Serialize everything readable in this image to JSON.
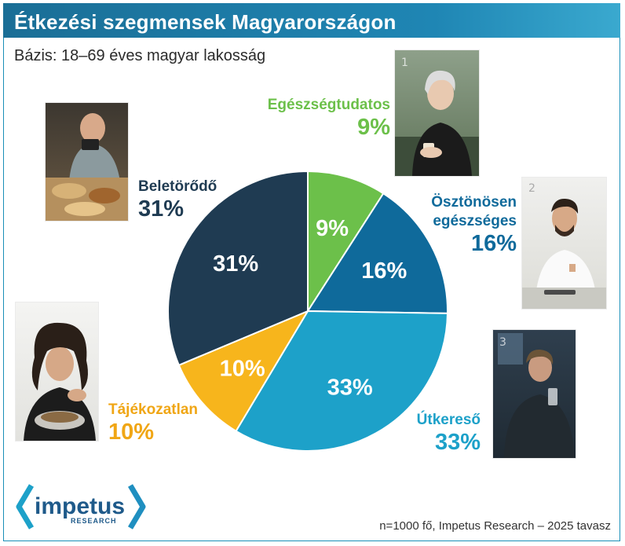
{
  "header": {
    "title": "Étkezési szegmensek Magyarországon",
    "subtitle": "Bázis: 18–69 éves magyar lakosság"
  },
  "footer": {
    "note": "n=1000 fő, Impetus Research – 2025 tavasz",
    "logo_name": "impetus",
    "logo_sub": "RESEARCH"
  },
  "chart_data": {
    "type": "pie",
    "title": "Étkezési szegmensek Magyarországon",
    "slices": [
      {
        "name": "Egészségtudatos",
        "value": 9,
        "label": "9%",
        "color": "#6cc04a"
      },
      {
        "name": "Ösztönösen egészséges",
        "value": 16,
        "label": "16%",
        "color": "#0f6a9b"
      },
      {
        "name": "Útkereső",
        "value": 33,
        "label": "33%",
        "color": "#1da1c9"
      },
      {
        "name": "Tájékozatlan",
        "value": 10,
        "label": "10%",
        "color": "#f7b51c"
      },
      {
        "name": "Beletörődő",
        "value": 31,
        "label": "31%",
        "color": "#1f3b52"
      }
    ]
  },
  "labels": {
    "egeszseg": {
      "name": "Egészségtudatos",
      "pct": "9%"
    },
    "osztonos": {
      "name1": "Ösztönösen",
      "name2": "egészséges",
      "pct": "16%"
    },
    "utkereso": {
      "name": "Útkereső",
      "pct": "33%"
    },
    "tajekozatlan": {
      "name": "Tájékozatlan",
      "pct": "10%"
    },
    "beletorodo": {
      "name": "Beletörődő",
      "pct": "31%"
    }
  },
  "photos": [
    {
      "id": "woman-coffee-photo",
      "badge": "1"
    },
    {
      "id": "man-eating-photo",
      "badge": ""
    },
    {
      "id": "smiling-man-photo",
      "badge": "2"
    },
    {
      "id": "woman-drinking-photo",
      "badge": "3"
    },
    {
      "id": "tired-woman-photo",
      "badge": ""
    }
  ]
}
